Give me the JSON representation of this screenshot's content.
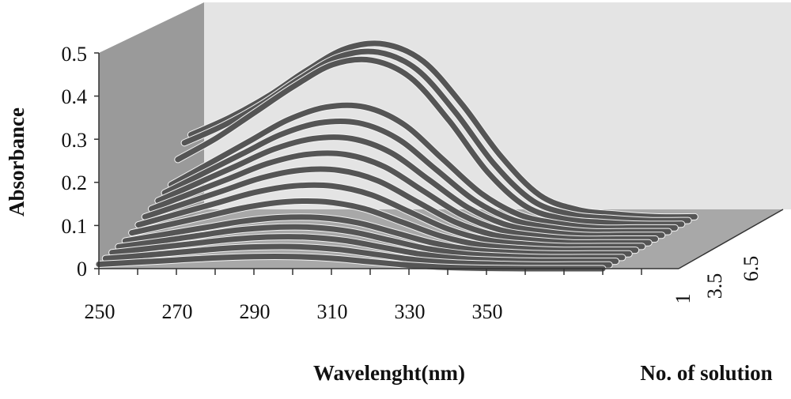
{
  "chart_data": {
    "type": "line",
    "projection": "3d",
    "title": "",
    "ylabel": "Absorbance",
    "xlabel": "Wavelenght(nm)",
    "zlabel": "No. of solution",
    "y_ticks": [
      "0",
      "0.1",
      "0.2",
      "0.3",
      "0.4",
      "0.5"
    ],
    "x_ticks": [
      "250",
      "270",
      "290",
      "310",
      "330",
      "350"
    ],
    "z_ticks": [
      "1",
      "3.5",
      "6.5"
    ],
    "ylim": [
      0,
      0.5
    ],
    "xlim": [
      250,
      395
    ],
    "zlim": [
      1,
      9
    ],
    "grid": false,
    "colors": {
      "line": "#555555",
      "back_wall": "#e4e4e4",
      "side_wall": "#9a9a9a",
      "floor": "#a8a8a8"
    },
    "x": [
      250,
      260,
      270,
      280,
      290,
      300,
      310,
      320,
      330,
      340,
      350,
      360,
      370,
      380
    ],
    "series": [
      {
        "z": 1.0,
        "values": [
          0.01,
          0.015,
          0.02,
          0.025,
          0.028,
          0.028,
          0.024,
          0.016,
          0.008,
          0.003,
          0.001,
          0,
          0,
          0
        ]
      },
      {
        "z": 1.5,
        "values": [
          0.015,
          0.022,
          0.03,
          0.038,
          0.042,
          0.042,
          0.036,
          0.024,
          0.012,
          0.005,
          0.002,
          0,
          0,
          0
        ]
      },
      {
        "z": 2.0,
        "values": [
          0.02,
          0.03,
          0.04,
          0.05,
          0.056,
          0.056,
          0.048,
          0.032,
          0.016,
          0.006,
          0.002,
          0,
          0,
          0
        ]
      },
      {
        "z": 2.5,
        "values": [
          0.025,
          0.037,
          0.05,
          0.063,
          0.07,
          0.07,
          0.06,
          0.04,
          0.02,
          0.008,
          0.003,
          0,
          0,
          0
        ]
      },
      {
        "z": 3.0,
        "values": [
          0.03,
          0.045,
          0.06,
          0.075,
          0.084,
          0.084,
          0.072,
          0.048,
          0.024,
          0.009,
          0.003,
          0,
          0,
          0
        ]
      },
      {
        "z": 3.5,
        "values": [
          0.04,
          0.06,
          0.08,
          0.1,
          0.112,
          0.112,
          0.096,
          0.064,
          0.032,
          0.012,
          0.004,
          0,
          0,
          0
        ]
      },
      {
        "z": 4.0,
        "values": [
          0.05,
          0.075,
          0.1,
          0.125,
          0.14,
          0.14,
          0.12,
          0.08,
          0.04,
          0.015,
          0.005,
          0,
          0,
          0
        ]
      },
      {
        "z": 4.5,
        "values": [
          0.06,
          0.09,
          0.12,
          0.15,
          0.168,
          0.168,
          0.144,
          0.096,
          0.048,
          0.018,
          0.006,
          0,
          0,
          0
        ]
      },
      {
        "z": 5.0,
        "values": [
          0.07,
          0.105,
          0.14,
          0.175,
          0.196,
          0.196,
          0.168,
          0.112,
          0.056,
          0.021,
          0.007,
          0,
          0,
          0
        ]
      },
      {
        "z": 5.5,
        "values": [
          0.08,
          0.12,
          0.16,
          0.2,
          0.224,
          0.224,
          0.192,
          0.128,
          0.064,
          0.024,
          0.008,
          0,
          0,
          0
        ]
      },
      {
        "z": 6.0,
        "values": [
          0.09,
          0.135,
          0.18,
          0.225,
          0.252,
          0.252,
          0.216,
          0.144,
          0.072,
          0.027,
          0.009,
          0,
          0,
          0
        ]
      },
      {
        "z": 6.5,
        "values": [
          0.1,
          0.15,
          0.2,
          0.25,
          0.28,
          0.28,
          0.24,
          0.16,
          0.08,
          0.03,
          0.01,
          0,
          0,
          0
        ]
      },
      {
        "z": 7.0,
        "values": [
          0.15,
          0.2,
          0.26,
          0.32,
          0.37,
          0.38,
          0.34,
          0.24,
          0.12,
          0.04,
          0.012,
          0.004,
          0,
          0
        ]
      },
      {
        "z": 7.5,
        "values": [
          0.18,
          0.22,
          0.27,
          0.33,
          0.38,
          0.39,
          0.35,
          0.25,
          0.13,
          0.045,
          0.014,
          0.005,
          0,
          0
        ]
      },
      {
        "z": 8.0,
        "values": [
          0.19,
          0.23,
          0.28,
          0.34,
          0.39,
          0.4,
          0.36,
          0.26,
          0.14,
          0.05,
          0.016,
          0.006,
          0,
          0
        ]
      }
    ]
  }
}
